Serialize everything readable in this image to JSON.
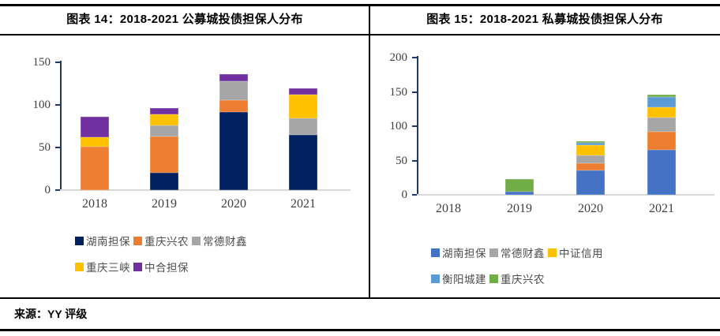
{
  "header": {
    "left_title": "图表 14：2018-2021 公募城投债担保人分布",
    "right_title": "图表 15：2018-2021 私募城投债担保人分布"
  },
  "source": {
    "text": "来源：YY 评级"
  },
  "colors": {
    "axis_line": "#1F3864",
    "baseline": "#D9D9D9",
    "tick_label": "#404040",
    "legend_text": "#4d4d4d",
    "border": "#000000"
  },
  "chart_data": [
    {
      "id": "public",
      "type": "bar",
      "stacked": true,
      "title": "图表 14：2018-2021 公募城投债担保人分布",
      "categories": [
        "2018",
        "2019",
        "2020",
        "2021"
      ],
      "series": [
        {
          "name": "湖南担保",
          "color": "#002060",
          "values": [
            0,
            20,
            92,
            65
          ]
        },
        {
          "name": "重庆兴农",
          "color": "#ED7D31",
          "values": [
            51,
            43,
            14,
            0
          ]
        },
        {
          "name": "常德财鑫",
          "color": "#A6A6A6",
          "values": [
            0,
            13,
            22,
            19
          ]
        },
        {
          "name": "重庆三峡",
          "color": "#FFC000",
          "values": [
            11,
            13,
            0,
            28
          ]
        },
        {
          "name": "中合担保",
          "color": "#7030A0",
          "values": [
            24,
            7,
            8,
            7
          ]
        }
      ],
      "totals": [
        86,
        96,
        136,
        119
      ],
      "ylim": [
        0,
        150
      ],
      "yticks": [
        0,
        50,
        100,
        150
      ],
      "legend_rows": [
        [
          0,
          1,
          2
        ],
        [
          3,
          4
        ]
      ],
      "legend_position": "bottom",
      "grid": false
    },
    {
      "id": "private",
      "type": "bar",
      "stacked": true,
      "title": "图表 15：2018-2021 私募城投债担保人分布",
      "categories": [
        "2018",
        "2019",
        "2020",
        "2021"
      ],
      "series": [
        {
          "name": "湖南担保",
          "color": "#4472C4",
          "values": [
            0,
            5,
            36,
            66
          ]
        },
        {
          "name": "",
          "color": "#ED7D31",
          "values": [
            0,
            0,
            10,
            26
          ]
        },
        {
          "name": "常德财鑫",
          "color": "#A6A6A6",
          "values": [
            0,
            0,
            12,
            21
          ]
        },
        {
          "name": "中证信用",
          "color": "#FFC000",
          "values": [
            0,
            0,
            14,
            15
          ]
        },
        {
          "name": "衡阳城建",
          "color": "#5B9BD5",
          "values": [
            0,
            0,
            4,
            14
          ]
        },
        {
          "name": "重庆兴农",
          "color": "#70AD47",
          "values": [
            0,
            18,
            2,
            4
          ]
        }
      ],
      "totals": [
        0,
        23,
        78,
        146
      ],
      "ylim": [
        0,
        200
      ],
      "yticks": [
        0,
        50,
        100,
        150,
        200
      ],
      "legend_rows": [
        [
          0,
          2,
          3
        ],
        [
          4,
          5
        ]
      ],
      "legend_position": "bottom",
      "grid": false
    }
  ]
}
